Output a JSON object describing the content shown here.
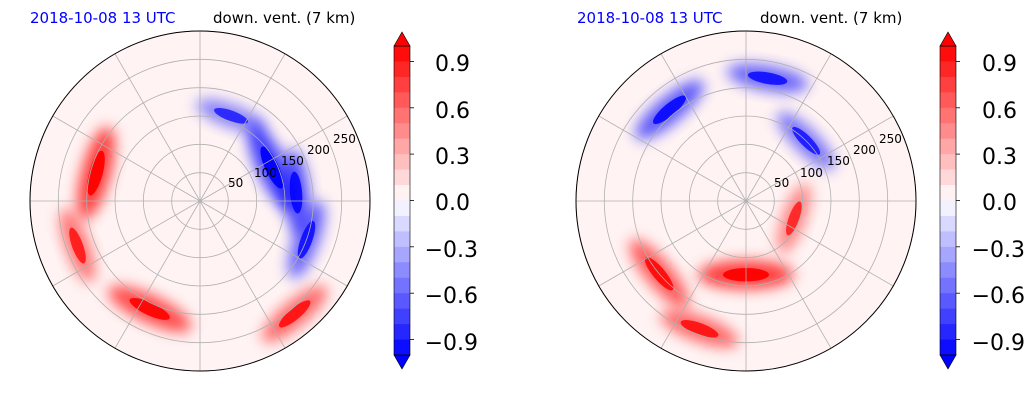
{
  "colors": {
    "positive": "#ff0000",
    "negative": "#0000ff",
    "neutral": "#ffffff",
    "date_text": "#0000ff",
    "grid": "#b0b0b0"
  },
  "chart_data": [
    {
      "type": "heatmap",
      "projection": "polar",
      "date": "2018-10-08 13 UTC",
      "title": "down. vent. (7 km)",
      "radial_ticks": [
        "50",
        "100",
        "150",
        "200",
        "250"
      ],
      "rlim": [
        0,
        300
      ],
      "grid": true,
      "colormap": "bwr",
      "colorbar": {
        "ticks": [
          "0.9",
          "0.6",
          "0.3",
          "0.0",
          "−0.3",
          "−0.6",
          "−0.9"
        ],
        "levels": 20,
        "range": [
          -1.0,
          1.0
        ],
        "extend": "both"
      },
      "features": [
        {
          "sign": "positive",
          "r": 190,
          "theta_deg": 165,
          "strength": 0.9
        },
        {
          "sign": "positive",
          "r": 230,
          "theta_deg": 200,
          "strength": 0.5
        },
        {
          "sign": "positive",
          "r": 210,
          "theta_deg": 245,
          "strength": 0.8
        },
        {
          "sign": "positive",
          "r": 260,
          "theta_deg": 310,
          "strength": 0.6
        },
        {
          "sign": "negative",
          "r": 140,
          "theta_deg": 25,
          "strength": 0.9
        },
        {
          "sign": "negative",
          "r": 170,
          "theta_deg": 5,
          "strength": 0.7
        },
        {
          "sign": "negative",
          "r": 200,
          "theta_deg": 340,
          "strength": 0.6
        },
        {
          "sign": "negative",
          "r": 160,
          "theta_deg": 70,
          "strength": 0.4
        }
      ]
    },
    {
      "type": "heatmap",
      "projection": "polar",
      "date": "2018-10-08 13 UTC",
      "title": "down. vent. (7 km)",
      "radial_ticks": [
        "50",
        "100",
        "150",
        "200",
        "250"
      ],
      "rlim": [
        0,
        300
      ],
      "grid": true,
      "colormap": "bwr",
      "colorbar": {
        "ticks": [
          "0.9",
          "0.6",
          "0.3",
          "0.0",
          "−0.3",
          "−0.6",
          "−0.9"
        ],
        "levels": 20,
        "range": [
          -1.0,
          1.0
        ],
        "extend": "both"
      },
      "features": [
        {
          "sign": "negative",
          "r": 210,
          "theta_deg": 130,
          "strength": 0.7
        },
        {
          "sign": "negative",
          "r": 220,
          "theta_deg": 80,
          "strength": 0.6
        },
        {
          "sign": "negative",
          "r": 150,
          "theta_deg": 45,
          "strength": 0.5
        },
        {
          "sign": "positive",
          "r": 130,
          "theta_deg": 270,
          "strength": 0.9
        },
        {
          "sign": "positive",
          "r": 200,
          "theta_deg": 220,
          "strength": 0.7
        },
        {
          "sign": "positive",
          "r": 240,
          "theta_deg": 250,
          "strength": 0.6
        },
        {
          "sign": "positive",
          "r": 90,
          "theta_deg": 340,
          "strength": 0.4
        }
      ]
    }
  ]
}
